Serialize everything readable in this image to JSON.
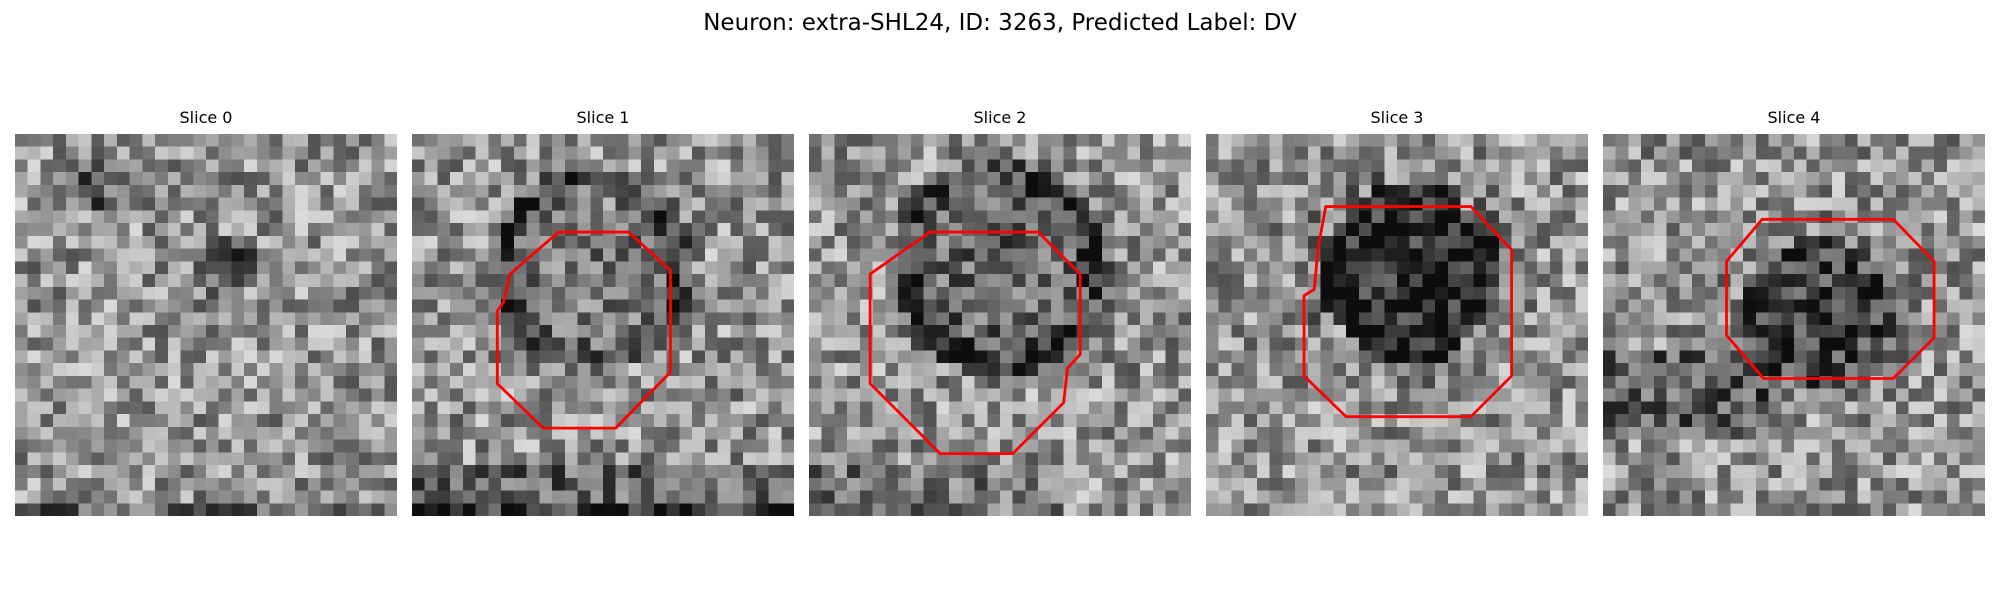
{
  "figure": {
    "title": "Neuron: extra-SHL24, ID: 3263, Predicted Label: DV"
  },
  "panels": [
    {
      "title": "Slice 0",
      "outline": false
    },
    {
      "title": "Slice 1",
      "outline": true
    },
    {
      "title": "Slice 2",
      "outline": true
    },
    {
      "title": "Slice 3",
      "outline": true
    },
    {
      "title": "Slice 4",
      "outline": true
    }
  ],
  "colors": {
    "outline": "#ff0000",
    "image_colormap": "grayscale"
  }
}
